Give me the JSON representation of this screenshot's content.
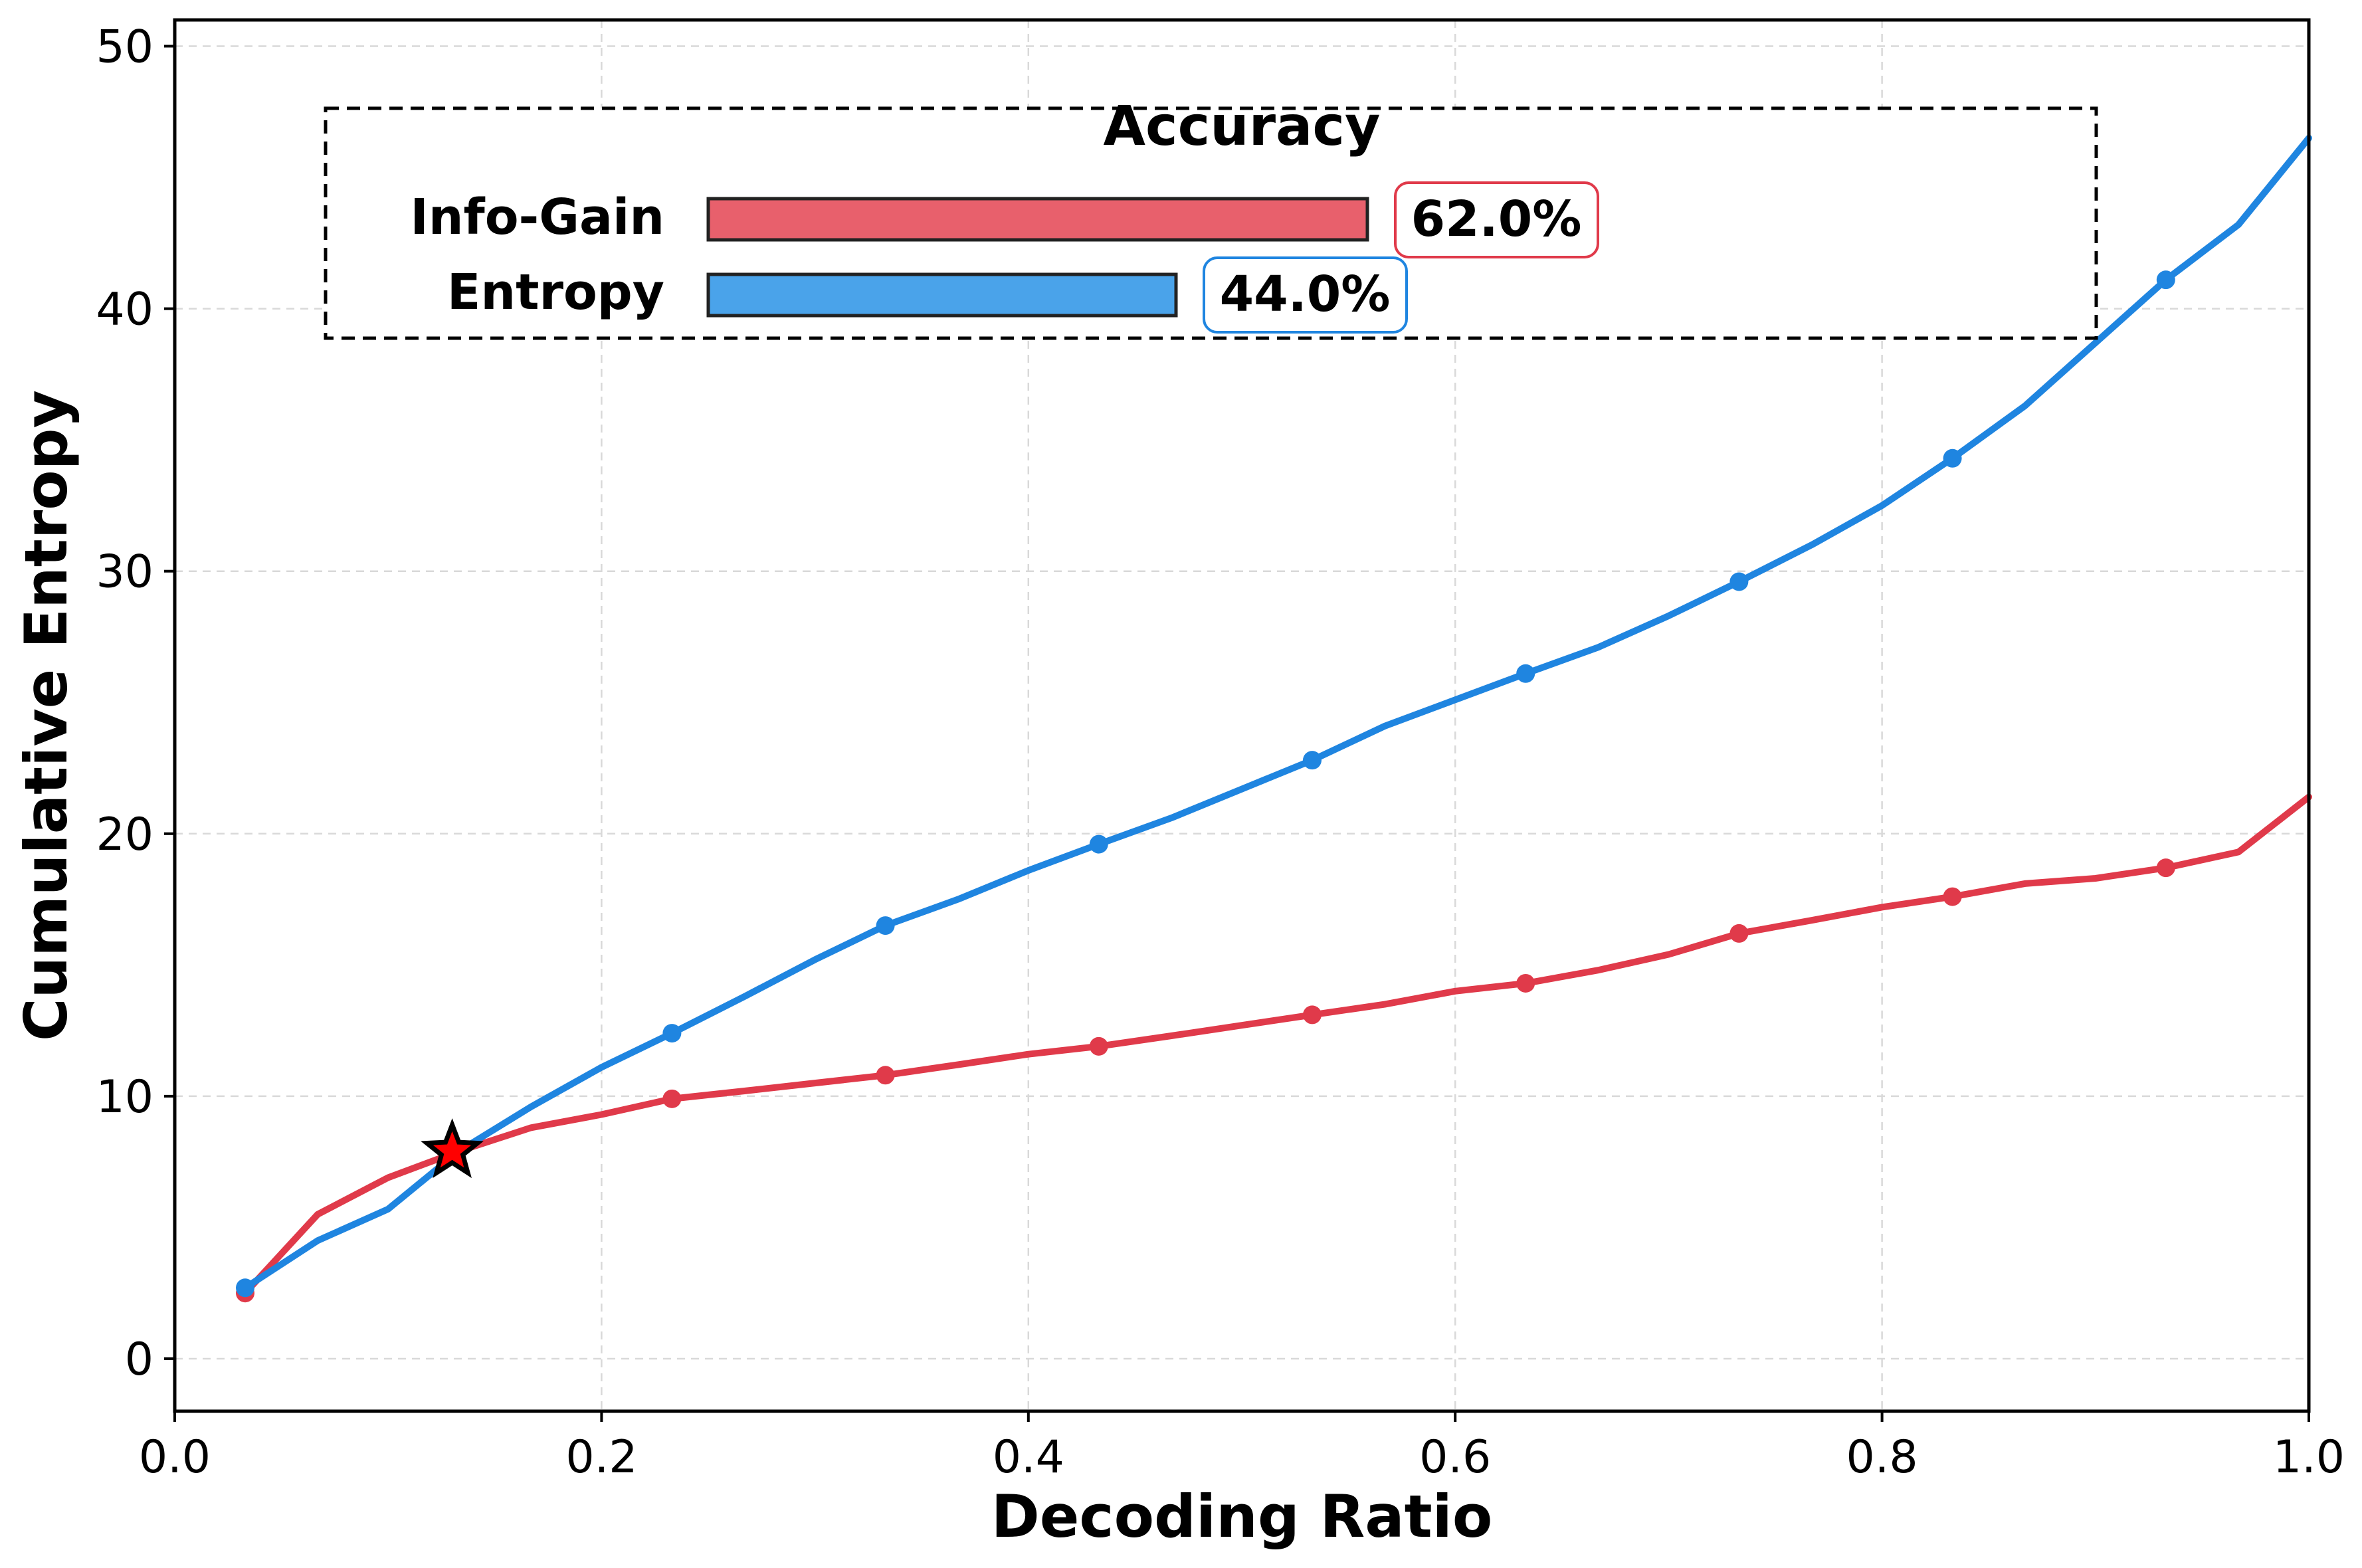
{
  "chart_data": {
    "type": "line",
    "title": "",
    "xlabel": "Decoding Ratio",
    "ylabel": "Cumulative Entropy",
    "xlim": [
      0.0,
      1.0
    ],
    "ylim": [
      -2,
      51
    ],
    "xticks": [
      0.0,
      0.2,
      0.4,
      0.6,
      0.8,
      1.0
    ],
    "xtick_labels": [
      "0.0",
      "0.2",
      "0.4",
      "0.6",
      "0.8",
      "1.0"
    ],
    "yticks": [
      0,
      10,
      20,
      30,
      40,
      50
    ],
    "ytick_labels": [
      "0",
      "10",
      "20",
      "30",
      "40",
      "50"
    ],
    "grid": true,
    "series": [
      {
        "name": "Info-Gain",
        "color": "#e03a4a",
        "x": [
          0.033,
          0.067,
          0.1,
          0.133,
          0.167,
          0.2,
          0.233,
          0.267,
          0.3,
          0.333,
          0.367,
          0.4,
          0.433,
          0.467,
          0.5,
          0.533,
          0.567,
          0.6,
          0.633,
          0.667,
          0.7,
          0.733,
          0.767,
          0.8,
          0.833,
          0.867,
          0.9,
          0.933,
          0.967,
          1.0
        ],
        "y": [
          2.5,
          5.5,
          6.9,
          7.9,
          8.8,
          9.3,
          9.9,
          10.2,
          10.5,
          10.8,
          11.2,
          11.6,
          11.9,
          12.3,
          12.7,
          13.1,
          13.5,
          14.0,
          14.3,
          14.8,
          15.4,
          16.2,
          16.7,
          17.2,
          17.6,
          18.1,
          18.3,
          18.7,
          19.3,
          21.4
        ],
        "marker_indices": [
          0,
          6,
          9,
          12,
          15,
          18,
          21,
          24,
          27
        ]
      },
      {
        "name": "Entropy",
        "color": "#1f85e0",
        "x": [
          0.033,
          0.067,
          0.1,
          0.133,
          0.167,
          0.2,
          0.233,
          0.267,
          0.3,
          0.333,
          0.367,
          0.4,
          0.433,
          0.467,
          0.5,
          0.533,
          0.567,
          0.6,
          0.633,
          0.667,
          0.7,
          0.733,
          0.767,
          0.8,
          0.833,
          0.867,
          0.9,
          0.933,
          0.967,
          1.0
        ],
        "y": [
          2.7,
          4.5,
          5.7,
          7.9,
          9.6,
          11.1,
          12.4,
          13.8,
          15.2,
          16.5,
          17.5,
          18.6,
          19.6,
          20.6,
          21.7,
          22.8,
          24.1,
          25.1,
          26.1,
          27.1,
          28.3,
          29.6,
          31.0,
          32.5,
          34.3,
          36.3,
          38.7,
          41.1,
          43.2,
          46.5
        ],
        "marker_indices": [
          0,
          6,
          9,
          12,
          15,
          18,
          21,
          24,
          27
        ]
      }
    ],
    "crossover_marker": {
      "x": 0.13,
      "y": 7.9,
      "symbol": "star",
      "color": "#ff0000"
    },
    "accuracy_inset": {
      "title": "Accuracy",
      "max_value": 100,
      "bars": [
        {
          "label": "Info-Gain",
          "value": 62.0,
          "value_label": "62.0%",
          "color": "#e8606c",
          "border": "#e03a4a"
        },
        {
          "label": "Entropy",
          "value": 44.0,
          "value_label": "44.0%",
          "color": "#4aa3ea",
          "border": "#1f85e0"
        }
      ]
    }
  }
}
